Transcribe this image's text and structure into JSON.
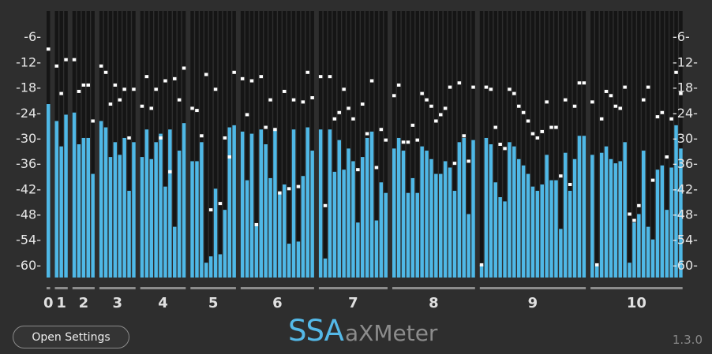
{
  "app": {
    "logo_primary": "SSA",
    "logo_secondary": "aXMeter",
    "version": "1.3.0"
  },
  "controls": {
    "open_settings_label": "Open Settings"
  },
  "scale": {
    "min_db": -63,
    "max_db": 0,
    "labels": [
      "-6-",
      "-12-",
      "-18-",
      "-24-",
      "-30-",
      "-36-",
      "-42-",
      "-48-",
      "-54-",
      "-60-"
    ],
    "values": [
      -6,
      -12,
      -18,
      -24,
      -30,
      -36,
      -42,
      -48,
      -54,
      -60
    ]
  },
  "colors": {
    "bar": "#4fb8e6",
    "background": "#2e2e2e",
    "track": "#151515",
    "peak": "#ffffff",
    "order_line": "#8c8c8c",
    "logo_accent": "#54b9e8"
  },
  "orders": [
    {
      "label": "0",
      "levels": [
        -22
      ],
      "peaks": [
        -9
      ]
    },
    {
      "label": "1",
      "levels": [
        -26,
        -32,
        -24.5
      ],
      "peaks": [
        -13,
        -19.5,
        -11.5
      ]
    },
    {
      "label": "2",
      "levels": [
        -24,
        -31.5,
        -30,
        -30,
        -38.5
      ],
      "peaks": [
        -11.5,
        -19,
        -17.5,
        -17.5,
        -26
      ]
    },
    {
      "label": "3",
      "levels": [
        -26,
        -27.5,
        -34.5,
        -31,
        -34,
        -30,
        -42.5,
        -31
      ],
      "peaks": [
        -13,
        -14.5,
        -22,
        -17.5,
        -21,
        -18.5,
        -30,
        -18.5
      ]
    },
    {
      "label": "4",
      "levels": [
        -34.5,
        -28,
        -35,
        -31,
        -29,
        -41.5,
        -28,
        -51,
        -33,
        -26.5
      ],
      "peaks": [
        -22.5,
        -15.5,
        -23,
        -18.5,
        -30,
        -16.5,
        -38,
        -16,
        -21,
        -13.5
      ]
    },
    {
      "label": "5",
      "levels": [
        -35.5,
        -35.5,
        -31,
        -59.5,
        -58,
        -42,
        -57.5,
        -47,
        -27.5,
        -27
      ],
      "peaks": [
        -23,
        -23.5,
        -29.5,
        -15,
        -47,
        -18.5,
        -45.5,
        -30,
        -34.5,
        -14.5
      ]
    },
    {
      "label": "6",
      "levels": [
        -28.5,
        -40,
        -29,
        -50.5,
        -28,
        -31.5,
        -39.5,
        -28,
        -43,
        -41,
        -55,
        -28,
        -54.5,
        -39,
        -27.5,
        -33
      ],
      "peaks": [
        -16,
        -24.5,
        -16.5,
        -50.5,
        -15.5,
        -27.5,
        -21,
        -28,
        -43,
        -19,
        -42,
        -21,
        -41.5,
        -21.5,
        -14.5,
        -20.5
      ]
    },
    {
      "label": "7",
      "levels": [
        -28,
        -58.5,
        -28,
        -38,
        -30.5,
        -37.5,
        -32.5,
        -35.5,
        -50,
        -34.5,
        -30,
        -28.5,
        -49.5,
        -40.5,
        -43
      ],
      "peaks": [
        -15.5,
        -46,
        -15.5,
        -25.5,
        -24,
        -18.5,
        -23,
        -25.5,
        -37.5,
        -22,
        -29,
        -16.5,
        -37,
        -28,
        -30.5
      ]
    },
    {
      "label": "8",
      "levels": [
        -32.5,
        -30,
        -33,
        -43,
        -39.5,
        -43,
        -32,
        -33,
        -35,
        -38.5,
        -38.5,
        -35.5,
        -37,
        -42.5,
        -31,
        -30,
        -48,
        -30.5
      ],
      "peaks": [
        -20,
        -17.5,
        -31,
        -31,
        -27,
        -30.5,
        -19.5,
        -21,
        -22.5,
        -26,
        -24.5,
        -23,
        -18,
        -36,
        -17,
        -29.5,
        -35.5,
        -18
      ]
    },
    {
      "label": "9",
      "levels": [
        -60,
        -30,
        -31.5,
        -40.5,
        -44,
        -45,
        -31,
        -32,
        -35,
        -36.5,
        -38.5,
        -41.5,
        -42.5,
        -41,
        -34,
        -40,
        -40,
        -51.5,
        -33.5,
        -42.5,
        -35,
        -29.5,
        -29.5
      ],
      "peaks": [
        -60,
        -18,
        -18.5,
        -27.5,
        -31.5,
        -32.5,
        -18.5,
        -19.5,
        -22.5,
        -24,
        -26,
        -29,
        -30,
        -28.5,
        -21.5,
        -27.5,
        -27.5,
        -39,
        -21,
        -41,
        -22.5,
        -17,
        -17
      ]
    },
    {
      "label": "10",
      "levels": [
        -34,
        -60,
        -33.5,
        -32,
        -35,
        -36,
        -35.5,
        -31,
        -59.5,
        -50,
        -48,
        -33,
        -51,
        -54,
        -37.5,
        -36.5,
        -47,
        -37,
        -27,
        -32.5
      ],
      "peaks": [
        -21.5,
        -60,
        -25.5,
        -19,
        -20,
        -22.5,
        -23,
        -18,
        -48,
        -49.5,
        -46,
        -21,
        -18,
        -40,
        -25,
        -24,
        -34.5,
        -25.5,
        -14.5,
        -19.5
      ]
    }
  ]
}
